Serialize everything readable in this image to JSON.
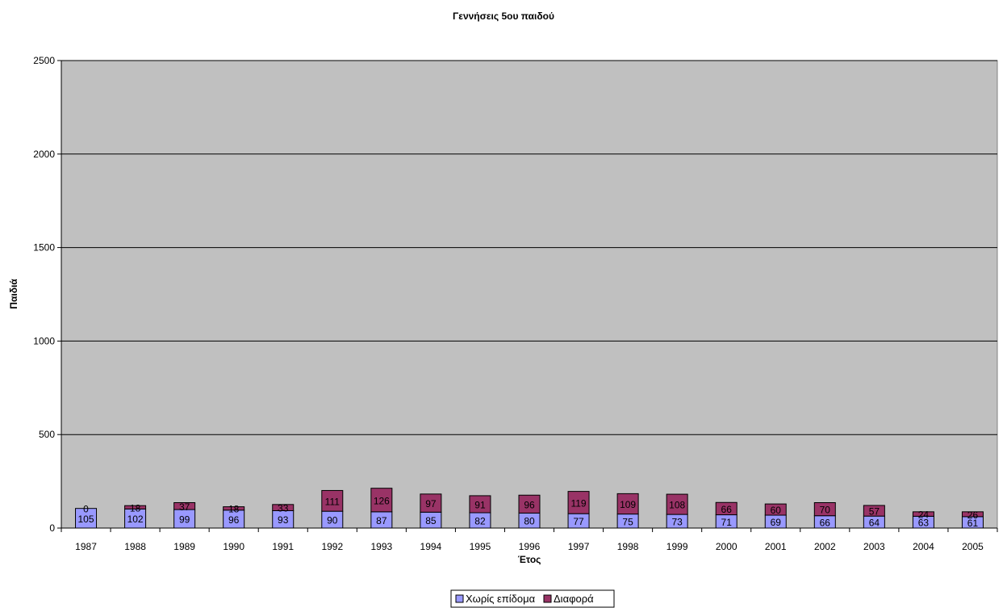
{
  "chart_data": {
    "type": "bar",
    "stacked": true,
    "title": "Γεννήσεις 5ου παιδού",
    "xlabel": "Έτος",
    "ylabel": "Παιδιά",
    "ylim": [
      0,
      2500
    ],
    "yticks": [
      "0",
      "500",
      "1000",
      "1500",
      "2000",
      "2500"
    ],
    "grid": true,
    "legend_position": "bottom",
    "categories": [
      "1987",
      "1988",
      "1989",
      "1990",
      "1991",
      "1992",
      "1993",
      "1994",
      "1995",
      "1996",
      "1997",
      "1998",
      "1999",
      "2000",
      "2001",
      "2002",
      "2003",
      "2004",
      "2005"
    ],
    "series": [
      {
        "name": "Χωρίς επίδομα",
        "color": "#9999ff",
        "values": [
          105,
          102,
          99,
          96,
          93,
          90,
          87,
          85,
          82,
          80,
          77,
          75,
          73,
          71,
          69,
          66,
          64,
          63,
          61
        ]
      },
      {
        "name": "Διαφορά",
        "color": "#993366",
        "values": [
          0,
          18,
          37,
          18,
          33,
          111,
          126,
          97,
          91,
          96,
          119,
          109,
          108,
          66,
          60,
          70,
          57,
          24,
          26
        ]
      }
    ],
    "plot_background": "#c0c0c0"
  }
}
